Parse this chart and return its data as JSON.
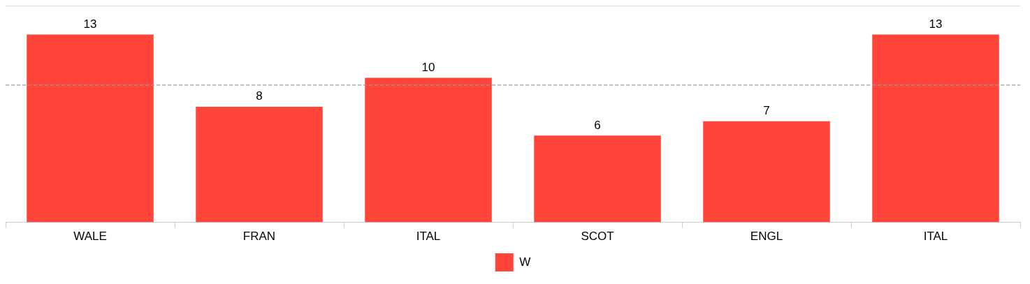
{
  "chart_data": {
    "type": "bar",
    "categories": [
      "WALE",
      "FRAN",
      "ITAL",
      "SCOT",
      "ENGL",
      "ITAL"
    ],
    "series": [
      {
        "name": "W",
        "color": "#ff4539",
        "values": [
          13,
          8,
          10,
          6,
          7,
          13
        ]
      }
    ],
    "ylim": [
      0,
      15
    ],
    "tick_labels": "x",
    "ref_lines": [
      {
        "axis": "y",
        "value": 9.5,
        "color": "#999999",
        "line_style": "dashed"
      }
    ],
    "data_labels": true,
    "legend": "bottom"
  }
}
